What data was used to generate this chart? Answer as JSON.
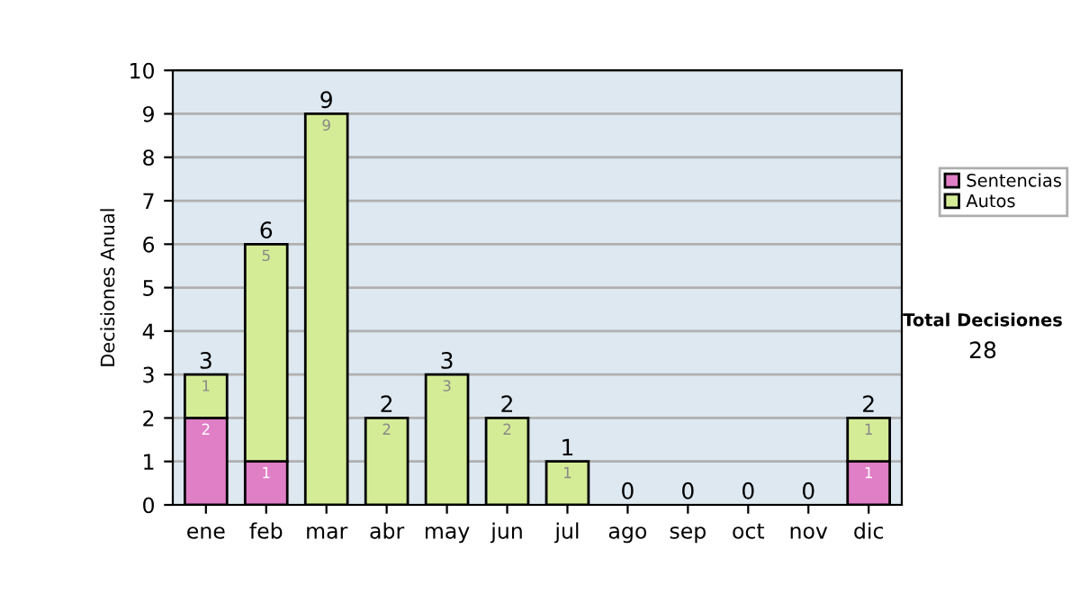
{
  "chart_data": {
    "type": "bar",
    "stacked": true,
    "ylabel": "Decisiones Anual",
    "categories": [
      "ene",
      "feb",
      "mar",
      "abr",
      "may",
      "jun",
      "jul",
      "ago",
      "sep",
      "oct",
      "nov",
      "dic"
    ],
    "series": [
      {
        "name": "Sentencias",
        "color": "#e07ec6",
        "values": [
          2,
          1,
          0,
          0,
          0,
          0,
          0,
          0,
          0,
          0,
          0,
          1
        ],
        "value_labels": [
          "2",
          "1",
          null,
          null,
          null,
          null,
          null,
          null,
          null,
          null,
          null,
          "1"
        ]
      },
      {
        "name": "Autos",
        "color": "#d5ec96",
        "values": [
          1,
          5,
          9,
          2,
          3,
          2,
          1,
          0,
          0,
          0,
          0,
          1
        ],
        "value_labels": [
          "1",
          "5",
          "9",
          "2",
          "3",
          "2",
          "1",
          null,
          null,
          null,
          null,
          "1"
        ]
      }
    ],
    "totals": [
      "3",
      "6",
      "9",
      "2",
      "3",
      "2",
      "1",
      "0",
      "0",
      "0",
      "0",
      "2"
    ],
    "ylim": [
      0,
      10
    ],
    "yticks": [
      0,
      1,
      2,
      3,
      4,
      5,
      6,
      7,
      8,
      9,
      10
    ],
    "grid": "y",
    "legend": "right",
    "annotations": [
      "Total Decisiones",
      "28"
    ]
  }
}
